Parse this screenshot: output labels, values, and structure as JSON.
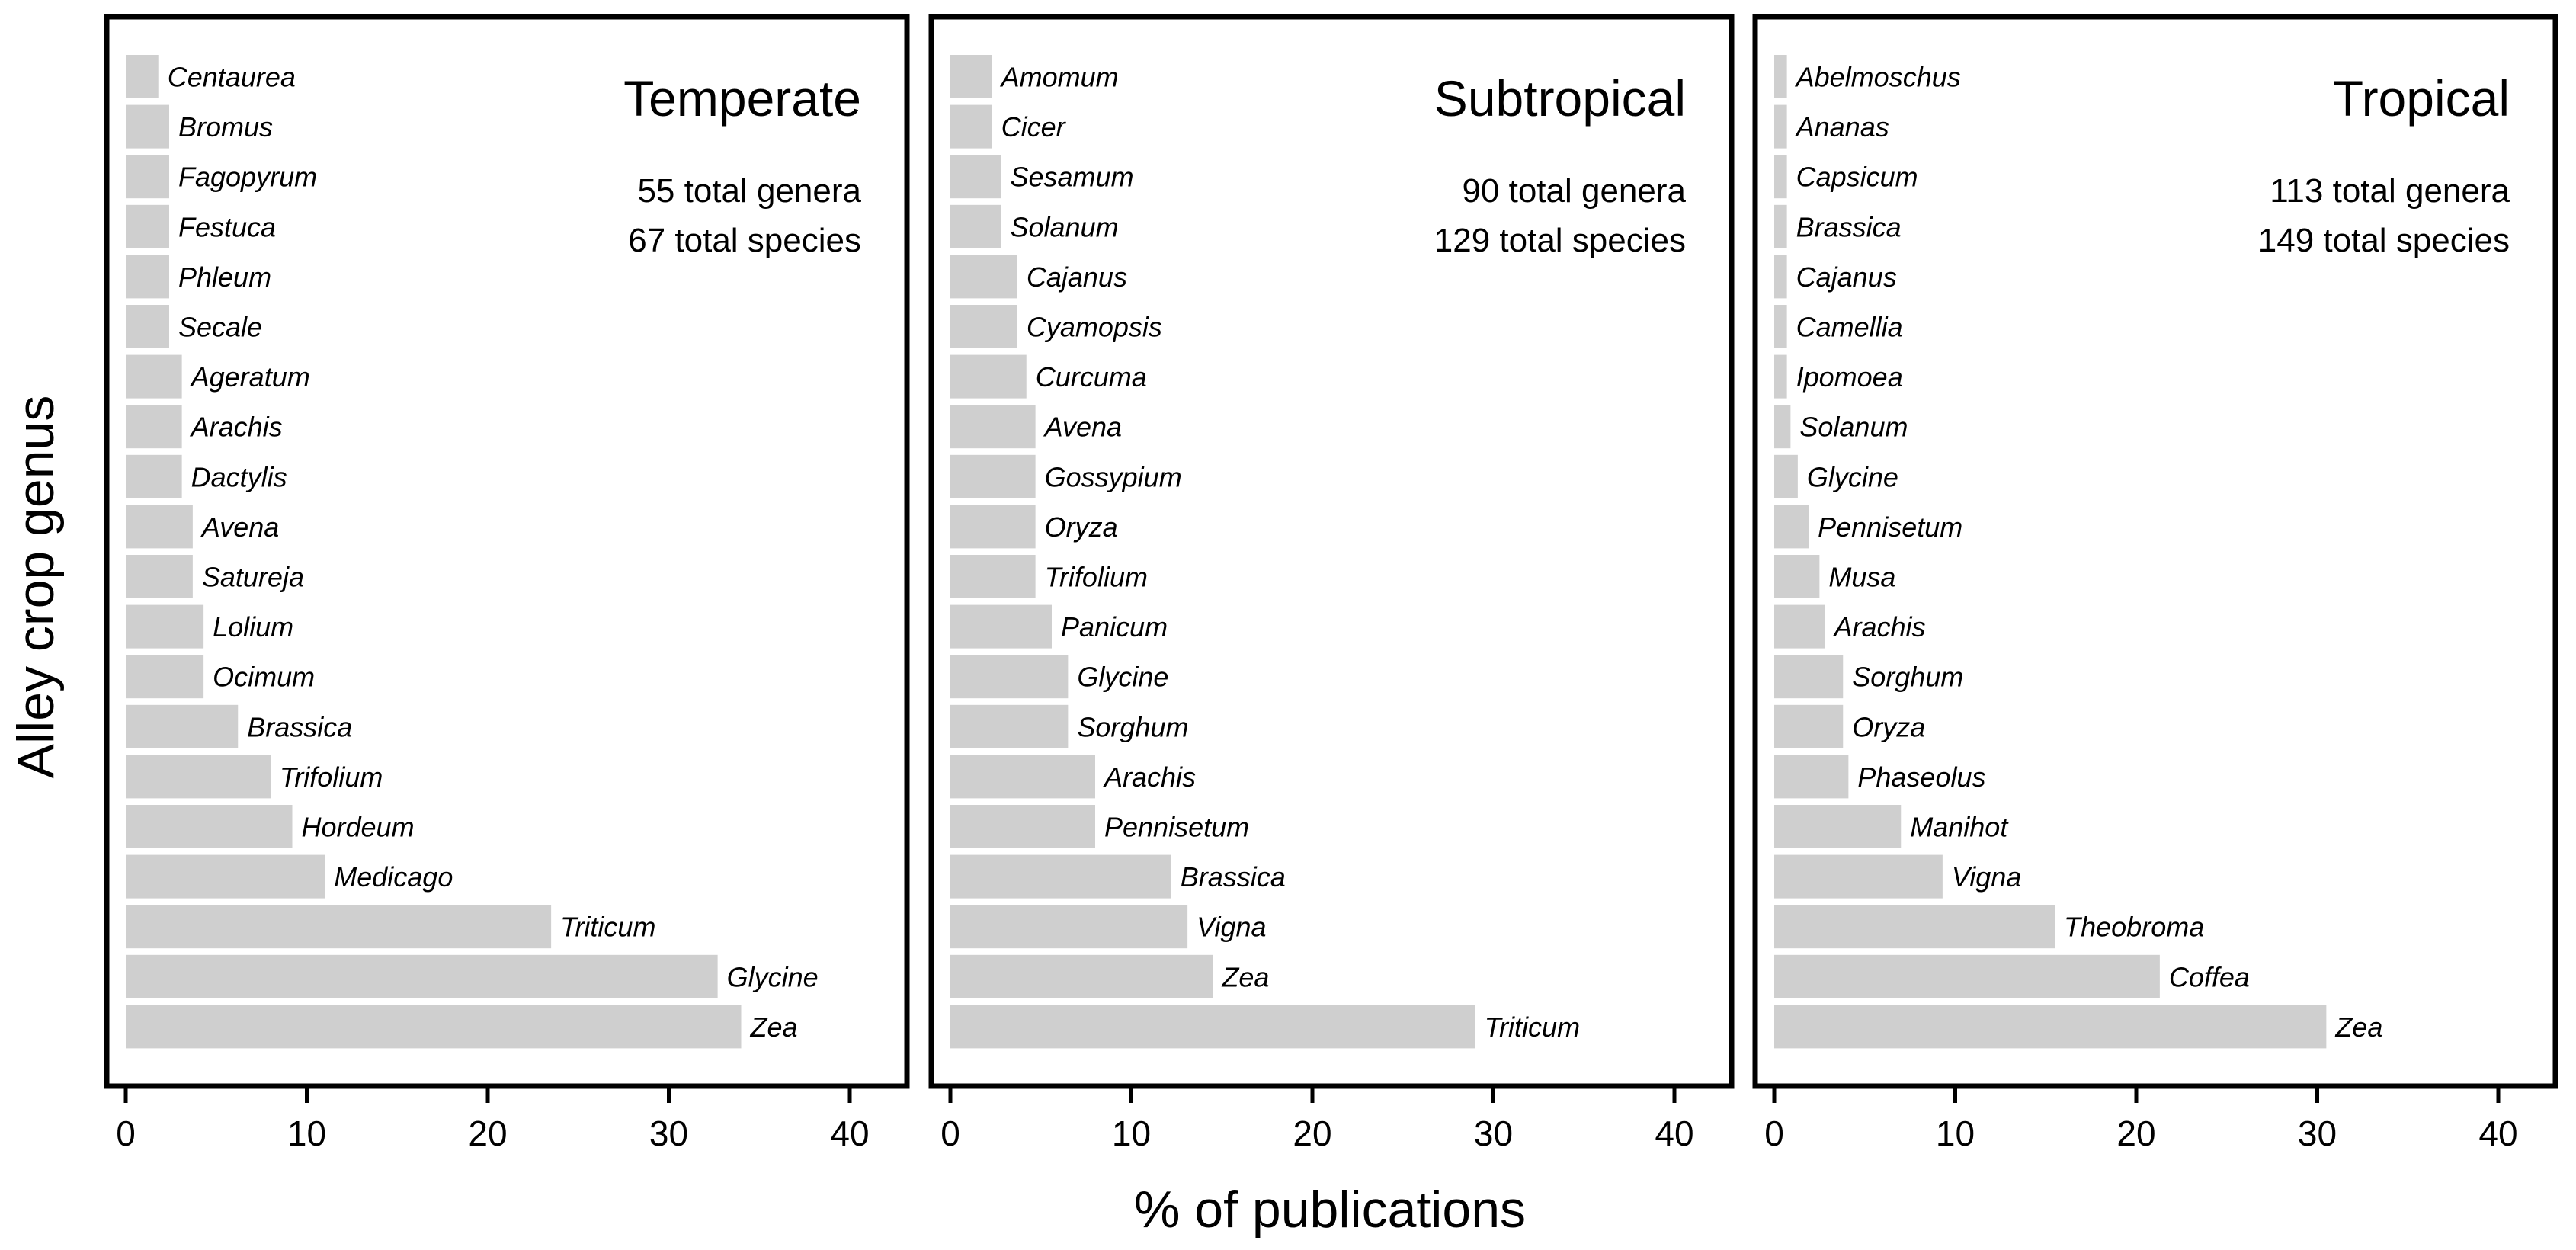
{
  "chart_data": [
    {
      "type": "bar",
      "orientation": "horizontal",
      "title": "Temperate",
      "total_genera": "55 total genera",
      "total_species": "67 total species",
      "xlim": [
        0,
        43
      ],
      "xticks": [
        "0",
        "10",
        "20",
        "30",
        "40"
      ],
      "categories": [
        "Centaurea",
        "Bromus",
        "Fagopyrum",
        "Festuca",
        "Phleum",
        "Secale",
        "Ageratum",
        "Arachis",
        "Dactylis",
        "Avena",
        "Satureja",
        "Lolium",
        "Ocimum",
        "Brassica",
        "Trifolium",
        "Hordeum",
        "Medicago",
        "Triticum",
        "Glycine",
        "Zea"
      ],
      "values": [
        1.8,
        2.4,
        2.4,
        2.4,
        2.4,
        2.4,
        3.1,
        3.1,
        3.1,
        3.7,
        3.7,
        4.3,
        4.3,
        6.2,
        8.0,
        9.2,
        11.0,
        23.5,
        32.7,
        34.0
      ]
    },
    {
      "type": "bar",
      "orientation": "horizontal",
      "title": "Subtropical",
      "total_genera": "90 total genera",
      "total_species": "129 total species",
      "xlim": [
        0,
        43
      ],
      "xticks": [
        "0",
        "10",
        "20",
        "30",
        "40"
      ],
      "categories": [
        "Amomum",
        "Cicer",
        "Sesamum",
        "Solanum",
        "Cajanus",
        "Cyamopsis",
        "Curcuma",
        "Avena",
        "Gossypium",
        "Oryza",
        "Trifolium",
        "Panicum",
        "Glycine",
        "Sorghum",
        "Arachis",
        "Pennisetum",
        "Brassica",
        "Vigna",
        "Zea",
        "Triticum"
      ],
      "values": [
        2.3,
        2.3,
        2.8,
        2.8,
        3.7,
        3.7,
        4.2,
        4.7,
        4.7,
        4.7,
        4.7,
        5.6,
        6.5,
        6.5,
        8.0,
        8.0,
        12.2,
        13.1,
        14.5,
        29.0
      ]
    },
    {
      "type": "bar",
      "orientation": "horizontal",
      "title": "Tropical",
      "total_genera": "113 total genera",
      "total_species": "149 total species",
      "xlim": [
        0,
        43
      ],
      "xticks": [
        "0",
        "10",
        "20",
        "30",
        "40"
      ],
      "categories": [
        "Abelmoschus",
        "Ananas",
        "Capsicum",
        "Brassica",
        "Cajanus",
        "Camellia",
        "Ipomoea",
        "Solanum",
        "Glycine",
        "Pennisetum",
        "Musa",
        "Arachis",
        "Sorghum",
        "Oryza",
        "Phaseolus",
        "Manihot",
        "Vigna",
        "Theobroma",
        "Coffea",
        "Zea"
      ],
      "values": [
        0.7,
        0.7,
        0.7,
        0.7,
        0.7,
        0.7,
        0.7,
        0.9,
        1.3,
        1.9,
        2.5,
        2.8,
        3.8,
        3.8,
        4.1,
        7.0,
        9.3,
        15.5,
        21.3,
        30.5
      ]
    }
  ],
  "ylabel": "Alley crop genus",
  "xlabel": "% of publications"
}
